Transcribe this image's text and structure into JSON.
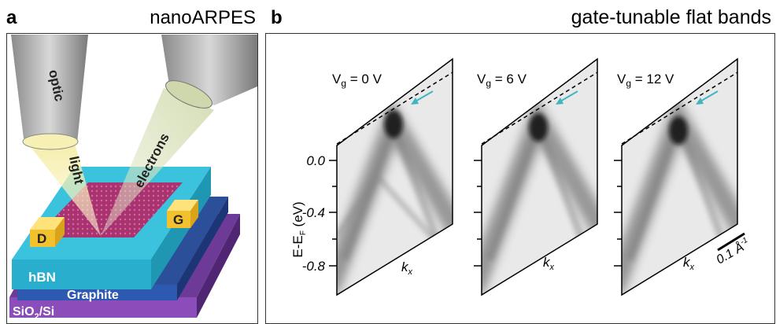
{
  "panel_a": {
    "label": "a",
    "title": "nanoARPES",
    "labels": {
      "optic": "optic",
      "light": "light",
      "electrons": "electrons",
      "drain": "D",
      "gate": "G",
      "hbn": "hBN",
      "graphite": "Graphite",
      "substrate": {
        "main": "SiO",
        "subscript": "2",
        "rest": "/Si"
      }
    }
  },
  "panel_b": {
    "label": "b",
    "title": "gate-tunable flat bands",
    "y_axis": {
      "label": {
        "main": "E-E",
        "subscript": "F",
        "rest": " (eV)"
      },
      "ticks": [
        "0.0",
        "-0.4",
        "-0.8"
      ]
    },
    "panels": [
      {
        "gate": {
          "main": "V",
          "subscript": "g",
          "rest": " = 0 V"
        },
        "x_label": {
          "main": "k",
          "subscript": "x"
        }
      },
      {
        "gate": {
          "main": "V",
          "subscript": "g",
          "rest": " = 6 V"
        },
        "x_label": {
          "main": "k",
          "subscript": "x"
        }
      },
      {
        "gate": {
          "main": "V",
          "subscript": "g",
          "rest": " = 12 V"
        },
        "x_label": {
          "main": "k",
          "subscript": "x"
        }
      }
    ],
    "scale_bar": {
      "main": "0.1 Å",
      "superscript": "-1"
    }
  }
}
